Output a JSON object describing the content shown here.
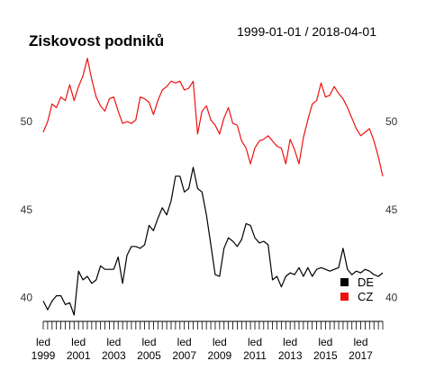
{
  "chart_data": {
    "type": "line",
    "title": "Ziskovost podniků",
    "subtitle": "1999-01-01 / 2018-04-01",
    "y_ticks": [
      "40",
      "45",
      "50"
    ],
    "ylim": [
      39.0,
      54.0
    ],
    "x_range": [
      "1999-01-01",
      "2018-04-01"
    ],
    "x_tick_month_word": "led",
    "x_tick_years": [
      "1999",
      "2001",
      "2003",
      "2005",
      "2007",
      "2009",
      "2011",
      "2013",
      "2015",
      "2017"
    ],
    "x_minor_ticks": "quarterly",
    "grid": false,
    "legend_position": "bottom-right",
    "legend": [
      {
        "name": "DE",
        "color": "#000000"
      },
      {
        "name": "CZ",
        "color": "#ee1111"
      }
    ],
    "series": [
      {
        "name": "CZ",
        "color": "#ee1111",
        "x": [
          "1999-01",
          "1999-04",
          "1999-07",
          "1999-10",
          "2000-01",
          "2000-04",
          "2000-07",
          "2000-10",
          "2001-01",
          "2001-04",
          "2001-07",
          "2001-10",
          "2002-01",
          "2002-04",
          "2002-07",
          "2002-10",
          "2003-01",
          "2003-04",
          "2003-07",
          "2003-10",
          "2004-01",
          "2004-04",
          "2004-07",
          "2004-10",
          "2005-01",
          "2005-04",
          "2005-07",
          "2005-10",
          "2006-01",
          "2006-04",
          "2006-07",
          "2006-10",
          "2007-01",
          "2007-04",
          "2007-07",
          "2007-10",
          "2008-01",
          "2008-04",
          "2008-07",
          "2008-10",
          "2009-01",
          "2009-04",
          "2009-07",
          "2009-10",
          "2010-01",
          "2010-04",
          "2010-07",
          "2010-10",
          "2011-01",
          "2011-04",
          "2011-07",
          "2011-10",
          "2012-01",
          "2012-04",
          "2012-07",
          "2012-10",
          "2013-01",
          "2013-04",
          "2013-07",
          "2013-10",
          "2014-01",
          "2014-04",
          "2014-07",
          "2014-10",
          "2015-01",
          "2015-04",
          "2015-07",
          "2015-10",
          "2016-01",
          "2016-04",
          "2016-07",
          "2016-10",
          "2017-01",
          "2017-04",
          "2017-07",
          "2017-10",
          "2018-01",
          "2018-04"
        ],
        "values": [
          49.4,
          50.0,
          51.0,
          50.8,
          51.4,
          51.2,
          52.1,
          51.2,
          52.0,
          52.6,
          53.6,
          52.4,
          51.4,
          50.9,
          50.6,
          51.3,
          51.4,
          50.6,
          49.9,
          50.0,
          49.9,
          50.1,
          51.4,
          51.3,
          51.1,
          50.4,
          51.2,
          51.8,
          52.0,
          52.3,
          52.2,
          52.3,
          51.8,
          51.9,
          52.3,
          49.3,
          50.6,
          50.9,
          50.1,
          49.8,
          49.3,
          50.2,
          50.8,
          49.9,
          49.8,
          48.9,
          48.5,
          47.6,
          48.5,
          48.9,
          49.0,
          49.2,
          48.9,
          48.6,
          48.5,
          47.6,
          49.0,
          48.4,
          47.6,
          49.1,
          50.1,
          51.0,
          51.2,
          52.2,
          51.4,
          51.5,
          52.0,
          51.6,
          51.3,
          50.8,
          50.2,
          49.6,
          49.2,
          49.4,
          49.6,
          48.9,
          48.0,
          46.9
        ]
      },
      {
        "name": "DE",
        "color": "#000000",
        "x": [
          "1999-01",
          "1999-04",
          "1999-07",
          "1999-10",
          "2000-01",
          "2000-04",
          "2000-07",
          "2000-10",
          "2001-01",
          "2001-04",
          "2001-07",
          "2001-10",
          "2002-01",
          "2002-04",
          "2002-07",
          "2002-10",
          "2003-01",
          "2003-04",
          "2003-07",
          "2003-10",
          "2004-01",
          "2004-04",
          "2004-07",
          "2004-10",
          "2005-01",
          "2005-04",
          "2005-07",
          "2005-10",
          "2006-01",
          "2006-04",
          "2006-07",
          "2006-10",
          "2007-01",
          "2007-04",
          "2007-07",
          "2007-10",
          "2008-01",
          "2008-04",
          "2008-07",
          "2008-10",
          "2009-01",
          "2009-04",
          "2009-07",
          "2009-10",
          "2010-01",
          "2010-04",
          "2010-07",
          "2010-10",
          "2011-01",
          "2011-04",
          "2011-07",
          "2011-10",
          "2012-01",
          "2012-04",
          "2012-07",
          "2012-10",
          "2013-01",
          "2013-04",
          "2013-07",
          "2013-10",
          "2014-01",
          "2014-04",
          "2014-07",
          "2014-10",
          "2015-01",
          "2015-04",
          "2015-07",
          "2015-10",
          "2016-01",
          "2016-04",
          "2016-07",
          "2016-10",
          "2017-01",
          "2017-04",
          "2017-07",
          "2017-10",
          "2018-01",
          "2018-04"
        ],
        "values": [
          39.8,
          39.3,
          39.8,
          40.1,
          40.1,
          39.6,
          39.7,
          39.0,
          41.5,
          41.0,
          41.2,
          40.8,
          41.0,
          41.8,
          41.6,
          41.6,
          41.6,
          42.3,
          40.8,
          42.4,
          42.9,
          42.9,
          42.8,
          43.0,
          44.1,
          43.8,
          44.5,
          45.1,
          44.7,
          45.5,
          46.9,
          46.9,
          46.0,
          46.2,
          47.4,
          46.2,
          46.0,
          44.7,
          43.0,
          41.3,
          41.2,
          42.8,
          43.4,
          43.2,
          42.9,
          43.3,
          44.2,
          44.1,
          43.4,
          43.1,
          43.2,
          43.0,
          41.0,
          41.2,
          40.6,
          41.2,
          41.4,
          41.3,
          41.7,
          41.2,
          41.7,
          41.2,
          41.6,
          41.7,
          41.6,
          41.5,
          41.6,
          41.7,
          42.8,
          41.6,
          41.3,
          41.5,
          41.4,
          41.6,
          41.5,
          41.3,
          41.2,
          41.4
        ]
      }
    ]
  }
}
